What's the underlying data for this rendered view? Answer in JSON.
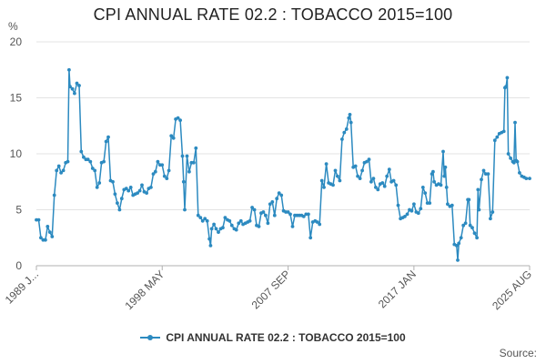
{
  "chart_data": {
    "type": "line",
    "title": "CPI ANNUAL RATE 02.2 : TOBACCO 2015=100",
    "ylabel": "%",
    "xlabel": "",
    "ylim": [
      0,
      20
    ],
    "yticks": [
      0,
      5,
      10,
      15,
      20
    ],
    "xticks": [
      {
        "label": "1989 J...",
        "x": 1989.0
      },
      {
        "label": "1998 MAY",
        "x": 1998.33
      },
      {
        "label": "2007 SEP",
        "x": 2007.67
      },
      {
        "label": "2017 JAN",
        "x": 2017.0
      },
      {
        "label": "2025 AUG",
        "x": 2025.58
      }
    ],
    "xlim": [
      1989.0,
      2025.58
    ],
    "legend_position": "bottom",
    "color": "#2c8ac0",
    "source_label": "Source:",
    "series": [
      {
        "name": "CPI ANNUAL RATE 02.2 : TOBACCO 2015=100",
        "points": [
          [
            1989.0,
            4.1
          ],
          [
            1989.17,
            4.1
          ],
          [
            1989.33,
            2.5
          ],
          [
            1989.5,
            2.3
          ],
          [
            1989.67,
            2.3
          ],
          [
            1989.83,
            3.5
          ],
          [
            1990.0,
            3.0
          ],
          [
            1990.17,
            2.6
          ],
          [
            1990.33,
            6.3
          ],
          [
            1990.5,
            8.5
          ],
          [
            1990.67,
            8.9
          ],
          [
            1990.83,
            8.3
          ],
          [
            1991.0,
            8.5
          ],
          [
            1991.17,
            9.2
          ],
          [
            1991.33,
            9.3
          ],
          [
            1991.42,
            17.5
          ],
          [
            1991.5,
            16.0
          ],
          [
            1991.67,
            15.8
          ],
          [
            1991.83,
            15.4
          ],
          [
            1992.0,
            16.3
          ],
          [
            1992.17,
            16.1
          ],
          [
            1992.33,
            10.2
          ],
          [
            1992.5,
            9.7
          ],
          [
            1992.67,
            9.5
          ],
          [
            1992.83,
            9.5
          ],
          [
            1993.0,
            9.3
          ],
          [
            1993.17,
            8.7
          ],
          [
            1993.33,
            8.5
          ],
          [
            1993.5,
            7.0
          ],
          [
            1993.67,
            7.4
          ],
          [
            1993.83,
            9.2
          ],
          [
            1994.0,
            9.3
          ],
          [
            1994.17,
            11.1
          ],
          [
            1994.33,
            11.5
          ],
          [
            1994.5,
            7.6
          ],
          [
            1994.67,
            7.5
          ],
          [
            1994.83,
            6.4
          ],
          [
            1995.0,
            5.6
          ],
          [
            1995.17,
            5.0
          ],
          [
            1995.33,
            6.0
          ],
          [
            1995.5,
            6.8
          ],
          [
            1995.67,
            6.9
          ],
          [
            1995.83,
            6.7
          ],
          [
            1996.0,
            7.0
          ],
          [
            1996.17,
            6.3
          ],
          [
            1996.33,
            6.4
          ],
          [
            1996.5,
            6.5
          ],
          [
            1996.67,
            6.7
          ],
          [
            1996.83,
            7.2
          ],
          [
            1997.0,
            6.6
          ],
          [
            1997.17,
            6.5
          ],
          [
            1997.33,
            6.9
          ],
          [
            1997.5,
            7.0
          ],
          [
            1997.67,
            8.2
          ],
          [
            1997.83,
            8.4
          ],
          [
            1998.0,
            9.3
          ],
          [
            1998.17,
            9.0
          ],
          [
            1998.33,
            9.0
          ],
          [
            1998.5,
            8.0
          ],
          [
            1998.67,
            7.8
          ],
          [
            1998.83,
            8.5
          ],
          [
            1999.0,
            11.6
          ],
          [
            1999.17,
            11.4
          ],
          [
            1999.33,
            13.1
          ],
          [
            1999.5,
            13.2
          ],
          [
            1999.67,
            13.0
          ],
          [
            1999.83,
            9.8
          ],
          [
            1999.92,
            7.5
          ],
          [
            2000.0,
            5.0
          ],
          [
            2000.17,
            9.8
          ],
          [
            2000.33,
            8.4
          ],
          [
            2000.5,
            9.2
          ],
          [
            2000.67,
            9.2
          ],
          [
            2000.83,
            10.5
          ],
          [
            2001.0,
            4.5
          ],
          [
            2001.17,
            4.3
          ],
          [
            2001.33,
            4.0
          ],
          [
            2001.5,
            4.2
          ],
          [
            2001.67,
            4.0
          ],
          [
            2001.83,
            2.4
          ],
          [
            2001.92,
            1.8
          ],
          [
            2002.0,
            3.3
          ],
          [
            2002.17,
            3.7
          ],
          [
            2002.33,
            3.3
          ],
          [
            2002.5,
            3.0
          ],
          [
            2002.67,
            3.3
          ],
          [
            2002.83,
            3.4
          ],
          [
            2003.0,
            4.3
          ],
          [
            2003.17,
            4.1
          ],
          [
            2003.33,
            4.0
          ],
          [
            2003.5,
            3.6
          ],
          [
            2003.67,
            3.3
          ],
          [
            2003.83,
            3.2
          ],
          [
            2004.0,
            3.8
          ],
          [
            2004.17,
            4.0
          ],
          [
            2004.33,
            3.7
          ],
          [
            2004.5,
            3.8
          ],
          [
            2004.67,
            3.9
          ],
          [
            2004.83,
            4.0
          ],
          [
            2005.0,
            5.2
          ],
          [
            2005.17,
            5.0
          ],
          [
            2005.33,
            3.6
          ],
          [
            2005.5,
            3.5
          ],
          [
            2005.67,
            4.7
          ],
          [
            2005.83,
            4.8
          ],
          [
            2006.0,
            4.5
          ],
          [
            2006.17,
            3.8
          ],
          [
            2006.33,
            5.5
          ],
          [
            2006.5,
            5.7
          ],
          [
            2006.67,
            4.5
          ],
          [
            2006.83,
            6.0
          ],
          [
            2007.0,
            6.5
          ],
          [
            2007.17,
            6.3
          ],
          [
            2007.33,
            4.9
          ],
          [
            2007.5,
            4.8
          ],
          [
            2007.67,
            4.8
          ],
          [
            2007.83,
            4.6
          ],
          [
            2008.0,
            3.5
          ],
          [
            2008.17,
            4.5
          ],
          [
            2008.33,
            4.5
          ],
          [
            2008.5,
            4.5
          ],
          [
            2008.67,
            4.5
          ],
          [
            2008.83,
            4.4
          ],
          [
            2009.0,
            4.6
          ],
          [
            2009.17,
            4.6
          ],
          [
            2009.33,
            2.5
          ],
          [
            2009.5,
            3.9
          ],
          [
            2009.67,
            4.0
          ],
          [
            2009.83,
            3.9
          ],
          [
            2010.0,
            3.7
          ],
          [
            2010.17,
            7.6
          ],
          [
            2010.33,
            7.0
          ],
          [
            2010.5,
            9.1
          ],
          [
            2010.67,
            7.4
          ],
          [
            2010.83,
            7.3
          ],
          [
            2011.0,
            7.2
          ],
          [
            2011.17,
            8.5
          ],
          [
            2011.33,
            8.0
          ],
          [
            2011.5,
            7.6
          ],
          [
            2011.67,
            11.3
          ],
          [
            2011.83,
            11.9
          ],
          [
            2012.0,
            12.2
          ],
          [
            2012.17,
            13.2
          ],
          [
            2012.25,
            13.5
          ],
          [
            2012.33,
            12.8
          ],
          [
            2012.5,
            8.8
          ],
          [
            2012.67,
            8.9
          ],
          [
            2012.83,
            8.0
          ],
          [
            2013.0,
            7.8
          ],
          [
            2013.17,
            8.5
          ],
          [
            2013.33,
            9.2
          ],
          [
            2013.5,
            9.3
          ],
          [
            2013.67,
            9.5
          ],
          [
            2013.83,
            7.5
          ],
          [
            2014.0,
            7.8
          ],
          [
            2014.17,
            7.0
          ],
          [
            2014.33,
            6.8
          ],
          [
            2014.5,
            7.3
          ],
          [
            2014.67,
            7.4
          ],
          [
            2014.83,
            7.1
          ],
          [
            2015.0,
            8.0
          ],
          [
            2015.17,
            8.6
          ],
          [
            2015.33,
            7.5
          ],
          [
            2015.5,
            7.6
          ],
          [
            2015.67,
            7.2
          ],
          [
            2015.83,
            5.4
          ],
          [
            2016.0,
            4.2
          ],
          [
            2016.17,
            4.3
          ],
          [
            2016.33,
            4.4
          ],
          [
            2016.5,
            4.6
          ],
          [
            2016.67,
            5.0
          ],
          [
            2016.83,
            4.9
          ],
          [
            2017.0,
            5.5
          ],
          [
            2017.17,
            4.8
          ],
          [
            2017.33,
            4.7
          ],
          [
            2017.5,
            5.1
          ],
          [
            2017.67,
            7.0
          ],
          [
            2017.83,
            6.5
          ],
          [
            2018.0,
            5.6
          ],
          [
            2018.17,
            5.6
          ],
          [
            2018.33,
            8.2
          ],
          [
            2018.42,
            8.4
          ],
          [
            2018.5,
            7.5
          ],
          [
            2018.67,
            7.2
          ],
          [
            2018.83,
            7.3
          ],
          [
            2019.0,
            7.2
          ],
          [
            2019.17,
            10.2
          ],
          [
            2019.25,
            8.0
          ],
          [
            2019.33,
            8.8
          ],
          [
            2019.42,
            7.0
          ],
          [
            2019.5,
            5.5
          ],
          [
            2019.67,
            5.3
          ],
          [
            2019.83,
            5.4
          ],
          [
            2020.0,
            1.9
          ],
          [
            2020.17,
            1.8
          ],
          [
            2020.25,
            0.5
          ],
          [
            2020.33,
            2.0
          ],
          [
            2020.5,
            2.5
          ],
          [
            2020.67,
            3.6
          ],
          [
            2020.83,
            3.8
          ],
          [
            2021.0,
            5.9
          ],
          [
            2021.08,
            5.9
          ],
          [
            2021.17,
            3.6
          ],
          [
            2021.33,
            3.4
          ],
          [
            2021.5,
            2.9
          ],
          [
            2021.67,
            2.5
          ],
          [
            2021.75,
            6.8
          ],
          [
            2021.83,
            5.0
          ],
          [
            2022.0,
            7.7
          ],
          [
            2022.17,
            8.5
          ],
          [
            2022.33,
            8.2
          ],
          [
            2022.5,
            8.2
          ],
          [
            2022.67,
            4.2
          ],
          [
            2022.83,
            4.8
          ],
          [
            2023.0,
            11.2
          ],
          [
            2023.17,
            11.5
          ],
          [
            2023.33,
            11.8
          ],
          [
            2023.5,
            11.9
          ],
          [
            2023.67,
            12.0
          ],
          [
            2023.75,
            15.9
          ],
          [
            2023.83,
            16.0
          ],
          [
            2023.92,
            16.8
          ],
          [
            2024.0,
            10.0
          ],
          [
            2024.17,
            9.6
          ],
          [
            2024.33,
            9.3
          ],
          [
            2024.42,
            9.2
          ],
          [
            2024.5,
            12.8
          ],
          [
            2024.58,
            9.4
          ],
          [
            2024.67,
            9.3
          ],
          [
            2024.83,
            8.3
          ],
          [
            2025.0,
            8.0
          ],
          [
            2025.17,
            7.9
          ],
          [
            2025.33,
            7.8
          ],
          [
            2025.58,
            7.8
          ]
        ]
      }
    ]
  }
}
